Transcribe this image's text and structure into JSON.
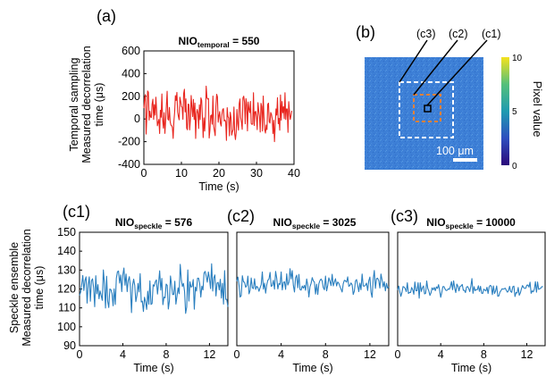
{
  "panels": {
    "a": "(a)",
    "b": "(b)",
    "c1": "(c1)",
    "c2": "(c2)",
    "c3": "(c3)"
  },
  "colors": {
    "temporal": "#e8261f",
    "speckle": "#2a7fbf",
    "map": "#3d7fd6",
    "orange_box": "#e8823a",
    "white_box": "#ffffff",
    "colorbar_low": "#2b0a7a",
    "colorbar_high": "#f5e21e"
  },
  "texts": {
    "top_ylabel_1": "Temporal sampling",
    "top_ylabel_2": "Measured decorrelation",
    "top_ylabel_3": "time (μs)",
    "bottom_ylabel_1": "Speckle  ensemble",
    "bottom_ylabel_2": "Measured decorrelation",
    "bottom_ylabel_3": "time (μs)",
    "roi_c3": "(c3)",
    "roi_c2": "(c2)",
    "roi_c1": "(c1)",
    "scalebar": "100 μm",
    "colorbar_label": "Pixel value",
    "colorbar_ticks": [
      "10",
      "5",
      "0"
    ]
  },
  "chart_data": [
    {
      "id": "a",
      "type": "line",
      "title_prefix": "NIO",
      "title_sub": "temporal",
      "title_suffix": " = 550",
      "xlabel": "Time (s)",
      "xlim": [
        0,
        40
      ],
      "ylim": [
        -400,
        600
      ],
      "xticks": [
        0,
        10,
        20,
        30,
        40
      ],
      "yticks": [
        600,
        400,
        200,
        0,
        -200,
        -400
      ],
      "x_step": 0.2,
      "y": [
        95,
        184,
        215,
        -133,
        28,
        247,
        236,
        -10,
        68,
        16,
        13,
        132,
        174,
        -4,
        126,
        33,
        192,
        73,
        -60,
        -29,
        -4,
        -128,
        77,
        16,
        221,
        -8,
        -81,
        56,
        -127,
        -17,
        120,
        244,
        -2,
        -10,
        102,
        -23,
        -54,
        -58,
        -76,
        -171,
        -20,
        59,
        206,
        163,
        234,
        60,
        23,
        -7,
        192,
        157,
        109,
        104,
        -3,
        224,
        262,
        62,
        177,
        -81,
        -95,
        131,
        128,
        -96,
        -2,
        207,
        101,
        21,
        172,
        -5,
        140,
        -172,
        43,
        84,
        53,
        -84,
        125,
        -6,
        186,
        164,
        13,
        -164,
        10,
        -106,
        16,
        290,
        188,
        176,
        181,
        -168,
        -97,
        29,
        35,
        -46,
        202,
        -63,
        -106,
        -147,
        110,
        218,
        195,
        -29,
        27,
        65,
        -39,
        -62,
        39,
        84,
        91,
        -18,
        -9,
        -23,
        -189,
        100,
        21,
        9,
        -149,
        59,
        14,
        -142,
        -112,
        -93,
        106,
        -131,
        -181,
        -115,
        84,
        -39,
        -98,
        135,
        176,
        13,
        -28,
        -92,
        186,
        201,
        152,
        -43,
        179,
        128,
        -105,
        150,
        87,
        55,
        155,
        -40,
        -48,
        -45,
        232,
        -57,
        62,
        67,
        17,
        -94,
        144,
        70,
        22,
        -115,
        138,
        110,
        -106,
        202,
        19,
        -93,
        -124,
        -54,
        -94,
        128,
        140,
        -25,
        -36,
        57,
        41,
        0,
        -128,
        -12,
        -200,
        -49,
        89,
        34,
        187,
        -42,
        5,
        -99,
        212,
        -11,
        154,
        55,
        108,
        3,
        231,
        -5,
        89,
        88,
        -118,
        153,
        64,
        -4,
        29,
        72
      ]
    },
    {
      "id": "c1",
      "type": "line",
      "title_prefix": "NIO",
      "title_sub": "speckle",
      "title_suffix": " = 576",
      "xlabel": "Time (s)",
      "xlim": [
        0,
        13.7
      ],
      "ylim": [
        90,
        150
      ],
      "xticks": [
        0,
        4,
        8,
        12
      ],
      "yticks": [
        150,
        140,
        130,
        120,
        110,
        100,
        90
      ],
      "x_step": 0.1,
      "y": [
        116.6,
        118.3,
        122.4,
        127.1,
        119.2,
        124.5,
        126.4,
        112.5,
        122.3,
        126.4,
        113.5,
        124.3,
        125.4,
        120.7,
        110.6,
        127.0,
        117.4,
        122.3,
        114.8,
        119.0,
        116.6,
        114.0,
        130.1,
        122.7,
        109.9,
        126.7,
        113.5,
        110.2,
        120.0,
        119.6,
        117.6,
        111.1,
        120.1,
        111.8,
        125.7,
        129.1,
        129.5,
        123.1,
        127.4,
        118.6,
        127.4,
        131.1,
        122.0,
        127.9,
        118.6,
        124.5,
        126.5,
        121.1,
        107.5,
        121.9,
        125.2,
        121.8,
        113.3,
        116.5,
        122.9,
        118.4,
        128.1,
        113.1,
        113.6,
        108.1,
        115.6,
        113.2,
        109.2,
        118.8,
        111.9,
        124.3,
        111.8,
        112.3,
        122.2,
        121.5,
        123.9,
        124.8,
        117.3,
        122.9,
        129.6,
        119.4,
        125.6,
        111.7,
        115.7,
        115.3,
        122.6,
        121.9,
        109.4,
        113.8,
        126.9,
        122.0,
        117.1,
        117.1,
        124.1,
        112.0,
        116.1,
        120.6,
        117.5,
        133.0,
        125.0,
        121.3,
        123.0,
        118.7,
        107.1,
        110.5,
        130.1,
        113.6,
        123.8,
        121.0,
        121.3,
        125.0,
        109.3,
        121.0,
        118.9,
        125.7,
        125.7,
        122.7,
        115.7,
        121.5,
        119.5,
        128.4,
        129.3,
        126.8,
        123.6,
        129.0,
        125.5,
        120.2,
        133.3,
        118.9,
        125.9,
        127.4,
        116.3,
        123.1,
        123.5,
        119.5,
        125.1,
        115.2,
        123.0,
        112.0,
        129.7,
        114.5,
        114.5,
        110.6
      ]
    },
    {
      "id": "c2",
      "type": "line",
      "title_prefix": "NIO",
      "title_sub": "speckle",
      "title_suffix": " = 3025",
      "xlabel": "Time (s)",
      "xlim": [
        0,
        13.7
      ],
      "ylim": [
        90,
        150
      ],
      "xticks": [
        0,
        4,
        8,
        12
      ],
      "yticks": [],
      "x_step": 0.1,
      "y": [
        124.1,
        126.3,
        121.9,
        115.7,
        116.5,
        127.0,
        123.8,
        123.5,
        120.9,
        121.8,
        126.8,
        117.4,
        119.3,
        125.8,
        120.6,
        120.2,
        125.4,
        119.8,
        121.4,
        120.7,
        118.8,
        120.6,
        122.3,
        129.0,
        119.9,
        123.1,
        117.8,
        122.2,
        124.6,
        125.3,
        128.8,
        121.4,
        121.8,
        124.6,
        119.9,
        129.3,
        125.7,
        120.0,
        122.9,
        122.4,
        129.0,
        119.5,
        123.5,
        123.8,
        119.8,
        128.0,
        122.1,
        123.6,
        130.7,
        125.3,
        129.7,
        121.9,
        118.4,
        126.0,
        127.3,
        120.6,
        127.7,
        119.7,
        119.4,
        121.6,
        120.4,
        122.0,
        119.3,
        125.3,
        122.0,
        115.8,
        121.2,
        123.0,
        126.0,
        124.3,
        123.6,
        117.3,
        122.5,
        117.1,
        122.8,
        124.5,
        125.3,
        124.2,
        120.7,
        119.6,
        126.8,
        119.0,
        121.9,
        125.9,
        124.1,
        121.8,
        127.8,
        121.6,
        123.7,
        125.4,
        121.6,
        123.7,
        123.0,
        121.4,
        119.9,
        118.4,
        122.8,
        124.6,
        124.3,
        123.6,
        126.4,
        121.4,
        121.9,
        123.2,
        122.2,
        117.1,
        118.9,
        124.2,
        125.0,
        121.9,
        118.6,
        123.1,
        119.6,
        127.9,
        121.6,
        121.5,
        122.0,
        123.1,
        119.2,
        124.3,
        126.3,
        118.3,
        115.6,
        125.2,
        129.8,
        120.3,
        125.5,
        125.7,
        124.4,
        120.5,
        127.9,
        124.8,
        121.1,
        123.8,
        119.0,
        123.0,
        120.5,
        121.2
      ]
    },
    {
      "id": "c3",
      "type": "line",
      "title_prefix": "NIO",
      "title_sub": "speckle",
      "title_suffix": " = 10000",
      "xlabel": "Time (s)",
      "xlim": [
        0,
        13.7
      ],
      "ylim": [
        90,
        150
      ],
      "xticks": [
        0,
        4,
        8,
        12
      ],
      "yticks": [],
      "x_step": 0.1,
      "y": [
        119.5,
        121.5,
        118.5,
        116.1,
        118.2,
        121.3,
        121.0,
        120.2,
        118.6,
        123.3,
        117.6,
        118.2,
        118.1,
        120.8,
        119.6,
        117.2,
        123.7,
        119.0,
        119.1,
        123.3,
        115.1,
        123.3,
        118.7,
        120.6,
        121.6,
        117.4,
        117.7,
        124.2,
        120.3,
        118.9,
        116.6,
        118.0,
        120.6,
        119.6,
        120.8,
        119.1,
        121.1,
        120.3,
        122.3,
        119.3,
        115.6,
        118.1,
        121.2,
        121.3,
        120.0,
        119.2,
        119.3,
        120.1,
        119.8,
        121.3,
        123.9,
        119.6,
        124.3,
        120.4,
        118.1,
        122.6,
        121.4,
        119.0,
        121.4,
        121.6,
        122.4,
        119.3,
        119.3,
        118.1,
        121.0,
        121.3,
        120.3,
        118.6,
        121.4,
        125.5,
        117.7,
        121.2,
        119.1,
        119.7,
        119.6,
        121.7,
        118.7,
        121.4,
        117.8,
        117.6,
        119.9,
        119.4,
        119.0,
        120.9,
        117.6,
        121.1,
        121.9,
        121.5,
        117.0,
        121.6,
        117.6,
        119.0,
        121.6,
        116.2,
        116.3,
        118.3,
        119.1,
        120.1,
        119.9,
        120.1,
        120.4,
        119.2,
        118.3,
        119.1,
        121.4,
        118.7,
        118.2,
        121.2,
        121.5,
        116.0,
        118.1,
        117.9,
        120.8,
        116.7,
        117.9,
        120.1,
        121.8,
        120.8,
        120.3,
        120.4,
        122.0,
        122.1,
        121.0,
        123.6,
        117.7,
        119.0,
        118.5,
        119.9,
        123.9,
        118.3,
        123.7,
        119.8,
        120.1,
        120.4,
        121.3,
        121.1
      ]
    }
  ]
}
